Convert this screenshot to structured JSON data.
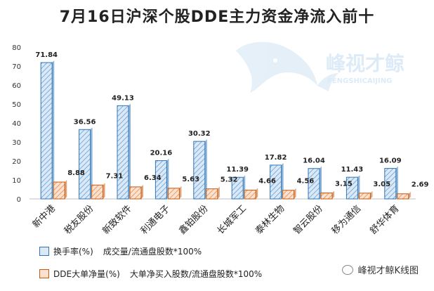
{
  "title": "7月16日沪深个股DDE主力资金净流入前十",
  "watermark": {
    "cn": "峰视才鲸",
    "en": "FENGSHICAIJING"
  },
  "brand": "峰视才鲸K线图",
  "colors": {
    "turnover": "#9dc3e6",
    "turnover_edge": "#2f75b5",
    "dde": "#f8cbad",
    "dde_edge": "#c55a11"
  },
  "legend": [
    {
      "name": "换手率(%)",
      "formula": "成交量/流通盘股数*100%"
    },
    {
      "name": "DDE大单净量(%)",
      "formula": "大单净买入股数/流通盘股数*100%"
    }
  ],
  "chart_data": {
    "type": "bar",
    "title": "7月16日沪深个股DDE主力资金净流入前十",
    "categories": [
      "新中港",
      "税友股份",
      "新致软件",
      "利通电子",
      "鑫铂股份",
      "长城军工",
      "泰林生物",
      "智云股份",
      "移为通信",
      "舒华体育"
    ],
    "series": [
      {
        "name": "换手率(%)",
        "values": [
          71.84,
          36.56,
          49.13,
          20.16,
          30.32,
          11.39,
          17.82,
          16.04,
          11.43,
          16.09
        ],
        "labels": [
          "71.84",
          "36.56",
          "49.13",
          "20.16",
          "30.32",
          "11.39",
          "17.82",
          "16.04",
          "11.43",
          "16.09"
        ]
      },
      {
        "name": "DDE大单净量(%)",
        "values": [
          8.88,
          7.31,
          6.34,
          5.63,
          5.32,
          4.66,
          4.56,
          3.15,
          3.05,
          2.69
        ],
        "labels": [
          "8.88",
          "7.31",
          "6.34",
          "5.63",
          "5.32",
          "4.66",
          "4.56",
          "3.15",
          "3.05",
          "2.69"
        ]
      }
    ],
    "yticks": [
      "0",
      "10",
      "20",
      "30",
      "40",
      "50",
      "60",
      "70",
      "80"
    ],
    "ylim": [
      0,
      80
    ],
    "grid": false,
    "legend_position": "bottom-left"
  }
}
